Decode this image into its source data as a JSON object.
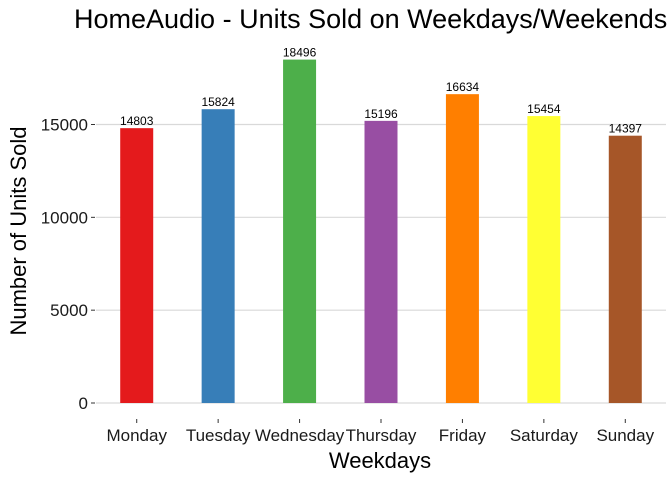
{
  "chart_data": {
    "type": "bar",
    "title": "HomeAudio - Units Sold on Weekdays/Weekends",
    "xlabel": "Weekdays",
    "ylabel": "Number of Units Sold",
    "categories": [
      "Monday",
      "Tuesday",
      "Wednesday",
      "Thursday",
      "Friday",
      "Saturday",
      "Sunday"
    ],
    "values": [
      14803,
      15824,
      18496,
      15196,
      16634,
      15454,
      14397
    ],
    "colors": [
      "#E41A1C",
      "#377EB8",
      "#4DAF4A",
      "#984EA3",
      "#FF7F00",
      "#FFFF33",
      "#A65628"
    ],
    "yticks": [
      0,
      5000,
      10000,
      15000
    ],
    "ylim": [
      0,
      19500
    ],
    "grid": true,
    "legend": "none"
  }
}
